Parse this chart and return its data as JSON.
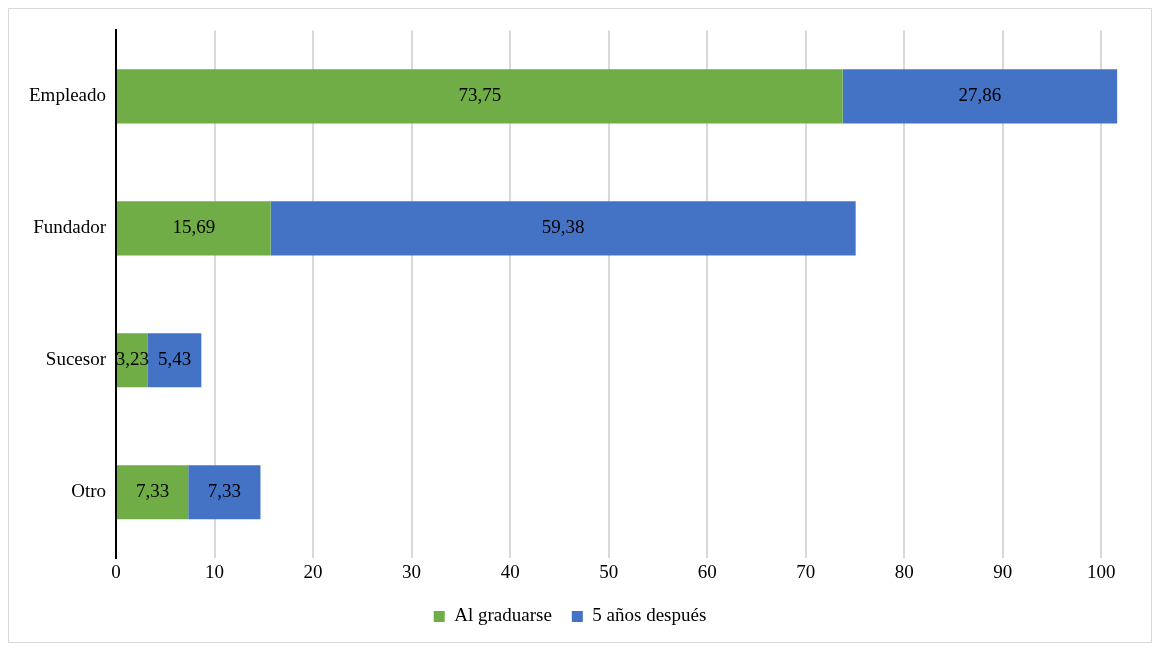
{
  "chart_data": {
    "type": "bar",
    "orientation": "horizontal",
    "stacked": true,
    "categories": [
      "Empleado",
      "Fundador",
      "Sucesor",
      "Otro"
    ],
    "series": [
      {
        "name": "Al graduarse",
        "color": "#70ad47",
        "values": [
          73.75,
          15.69,
          3.23,
          7.33
        ],
        "value_labels": [
          "73,75",
          "15,69",
          "3,23",
          "7,33"
        ]
      },
      {
        "name": "5 años después",
        "color": "#4472c4",
        "values": [
          27.86,
          59.38,
          5.43,
          7.33
        ],
        "value_labels": [
          "27,86",
          "59,38",
          "5,43",
          "7,33"
        ]
      }
    ],
    "xlim": [
      0,
      102
    ],
    "xticks": [
      0,
      10,
      20,
      30,
      40,
      50,
      60,
      70,
      80,
      90,
      100
    ],
    "grid": "x",
    "legend": "bottom"
  }
}
